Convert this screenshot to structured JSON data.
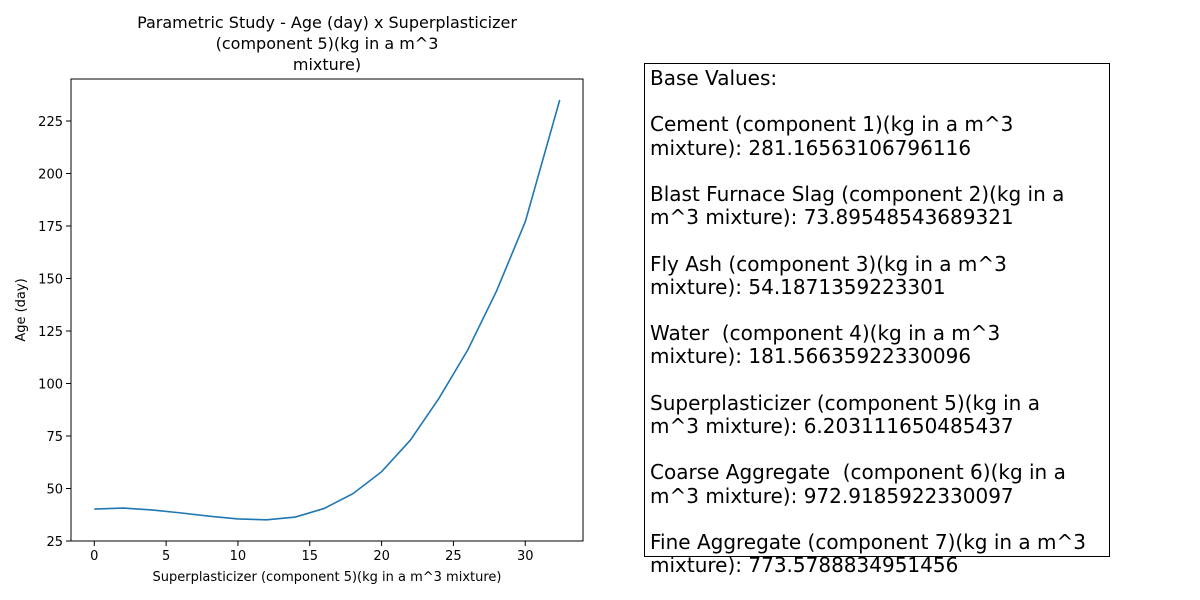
{
  "chart_data": {
    "type": "line",
    "title": "Parametric Study - Age (day) x Superplasticizer\n(component 5)(kg in a m^3\nmixture)",
    "x_label": "Superplasticizer (component 5)(kg in a m^3 mixture)",
    "y_label": "Age (day)",
    "x": [
      0,
      2,
      4,
      6,
      8,
      10,
      12,
      14,
      16,
      18,
      20,
      22,
      24,
      26,
      28,
      30,
      32.4
    ],
    "series": [
      {
        "color": "#1f77b4",
        "values": [
          40.2,
          40.7,
          39.8,
          38.4,
          36.8,
          35.5,
          35.1,
          36.4,
          40.5,
          47.5,
          58,
          73,
          93,
          116,
          144,
          177,
          235
        ]
      }
    ],
    "xlim": [
      -1.62,
      34.02
    ],
    "xticks": [
      0,
      5,
      10,
      15,
      20,
      25,
      30
    ],
    "ylim": [
      25,
      245
    ],
    "yticks": [
      25,
      50,
      75,
      100,
      125,
      150,
      175,
      200,
      225
    ]
  },
  "base_values": {
    "title": "Base Values:",
    "entries": [
      "Cement (component 1)(kg in a m^3\nmixture): 281.16563106796116",
      "Blast Furnace Slag (component 2)(kg in a\nm^3 mixture): 73.89548543689321",
      "Fly Ash (component 3)(kg in a m^3\nmixture): 54.1871359223301",
      "Water  (component 4)(kg in a m^3\nmixture): 181.56635922330096",
      "Superplasticizer (component 5)(kg in a\nm^3 mixture): 6.203111650485437",
      "Coarse Aggregate  (component 6)(kg in a\nm^3 mixture): 972.9185922330097",
      "Fine Aggregate (component 7)(kg in a m^3\nmixture): 773.5788834951456"
    ]
  }
}
